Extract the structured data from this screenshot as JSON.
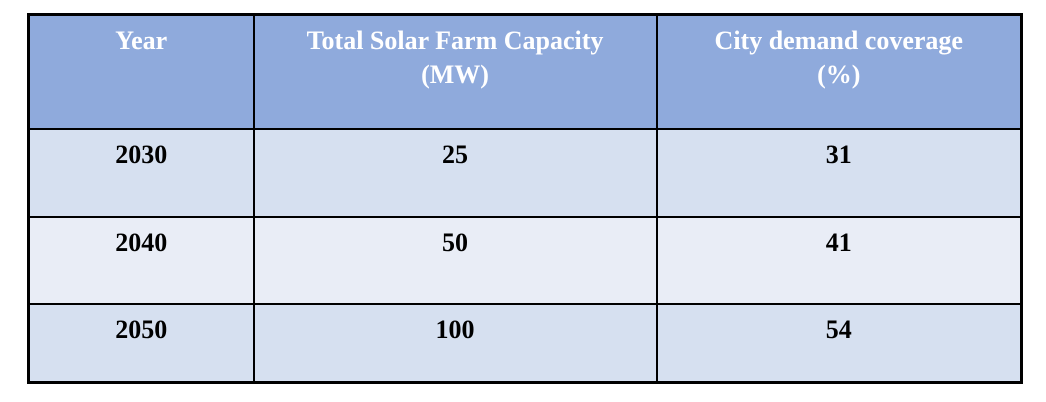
{
  "table": {
    "columns": [
      {
        "label": "Year",
        "sub": ""
      },
      {
        "label": "Total Solar Farm Capacity",
        "sub": "(MW)"
      },
      {
        "label": "City demand coverage",
        "sub": "(%)"
      }
    ],
    "rows": [
      {
        "year": "2030",
        "capacity": "25",
        "coverage": "31"
      },
      {
        "year": "2040",
        "capacity": "50",
        "coverage": "41"
      },
      {
        "year": "2050",
        "capacity": "100",
        "coverage": "54"
      }
    ]
  },
  "colors": {
    "page_bg": "#FFFFFF",
    "header_bg": "#8FAADC",
    "header_text": "#FFFFFF",
    "row_odd_bg": "#D6E0F0",
    "row_even_bg": "#E9EDF6",
    "border": "#000000",
    "body_text": "#000000"
  },
  "chart_data": {
    "type": "table",
    "title": "",
    "columns": [
      "Year",
      "Total Solar Farm Capacity (MW)",
      "City demand coverage (%)"
    ],
    "rows": [
      [
        "2030",
        "25",
        "31"
      ],
      [
        "2040",
        "50",
        "41"
      ],
      [
        "2050",
        "100",
        "54"
      ]
    ]
  }
}
